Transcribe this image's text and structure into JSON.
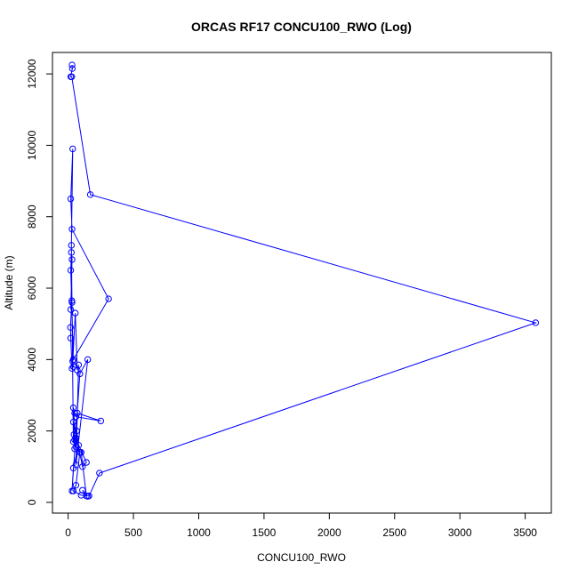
{
  "chart_data": {
    "type": "line",
    "title": "ORCAS RF17 CONCU100_RWO (Log)",
    "xlabel": "CONCU100_RWO",
    "ylabel": "Altitude (m)",
    "xlim": [
      -120,
      3700
    ],
    "ylim": [
      -300,
      12600
    ],
    "x_ticks": [
      0,
      500,
      1000,
      1500,
      2000,
      2500,
      3000,
      3500
    ],
    "y_ticks": [
      0,
      2000,
      4000,
      6000,
      8000,
      10000,
      12000
    ],
    "grid": false,
    "series": [
      {
        "color": "#0000ff",
        "marker": "open-circle",
        "x": [
          30,
          32,
          20,
          28,
          170,
          3580,
          240,
          160,
          100,
          40,
          60,
          90,
          40,
          25,
          35,
          20,
          30,
          310,
          40,
          20,
          25,
          30,
          20,
          30,
          28,
          18,
          20,
          30,
          40,
          35,
          55,
          70,
          80,
          60,
          150,
          90,
          30,
          40,
          80,
          65,
          70,
          250,
          60,
          50,
          40,
          60,
          50,
          45,
          140,
          110,
          40,
          50,
          60,
          100,
          140,
          110,
          150
        ],
        "y": [
          12250,
          12150,
          11920,
          11920,
          8620,
          5030,
          820,
          180,
          200,
          320,
          480,
          1400,
          1700,
          7200,
          9900,
          8500,
          7650,
          5700,
          4000,
          6500,
          7000,
          6800,
          5400,
          5600,
          5650,
          4900,
          4600,
          3750,
          3800,
          3950,
          5300,
          3700,
          3850,
          1050,
          4000,
          3600,
          320,
          960,
          1600,
          2000,
          2500,
          2280,
          2400,
          2500,
          2650,
          1800,
          1500,
          1900,
          1120,
          1000,
          2250,
          1750,
          1550,
          1400,
          180,
          340,
          170
        ]
      }
    ]
  }
}
